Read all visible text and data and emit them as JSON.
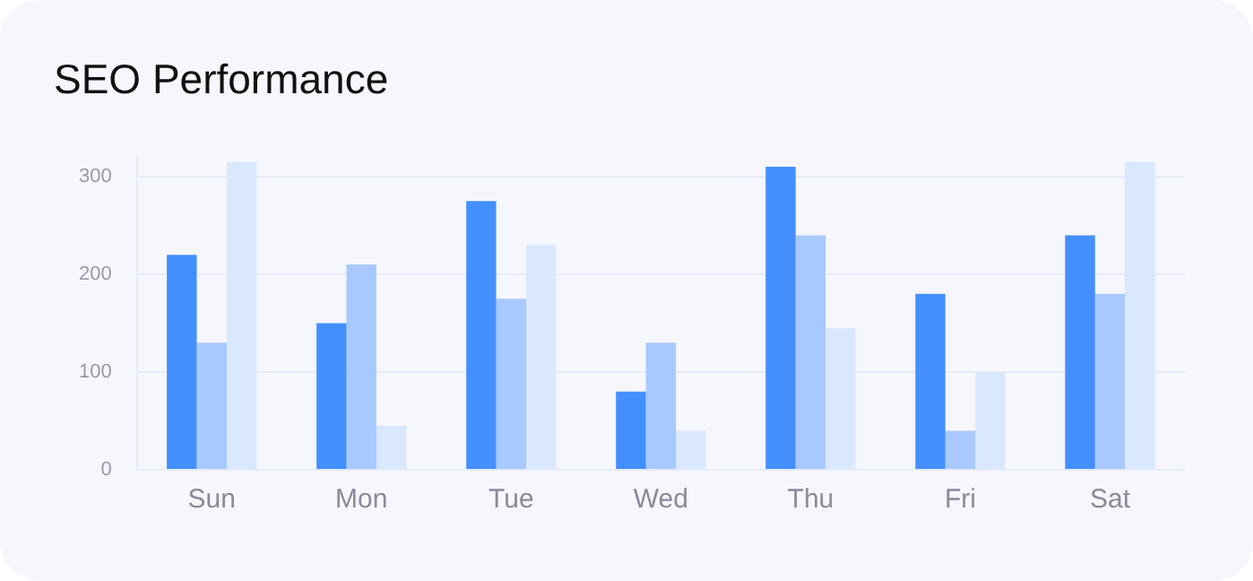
{
  "chart_data": {
    "type": "bar",
    "title": "SEO Performance",
    "categories": [
      "Sun",
      "Mon",
      "Tue",
      "Wed",
      "Thu",
      "Fri",
      "Sat"
    ],
    "series": [
      {
        "color": "#448ffe",
        "values": [
          220,
          150,
          275,
          80,
          310,
          180,
          240
        ]
      },
      {
        "color": "#a8c9fe",
        "values": [
          130,
          210,
          175,
          130,
          240,
          40,
          180
        ]
      },
      {
        "color": "#dae8fe",
        "values": [
          315,
          45,
          230,
          40,
          145,
          100,
          315
        ]
      }
    ],
    "ylim": [
      0,
      320
    ],
    "yticks": [
      0,
      100,
      200,
      300
    ],
    "grid": "y",
    "legend": false
  }
}
